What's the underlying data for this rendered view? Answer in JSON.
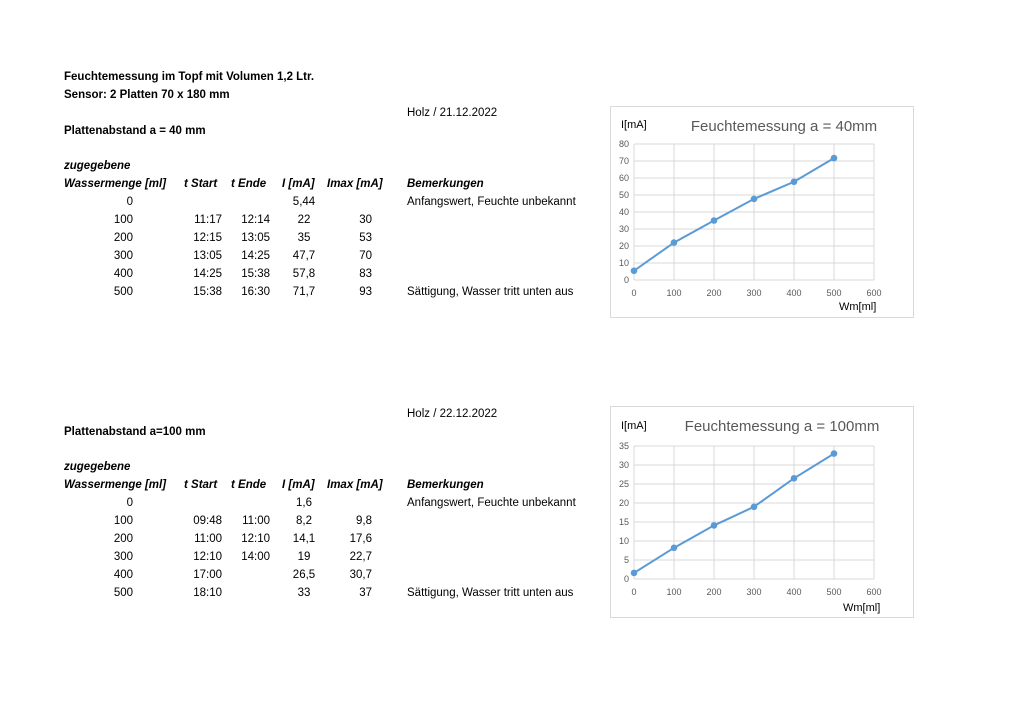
{
  "page": {
    "title_line1": "Feuchtemessung im Topf mit Volumen 1,2 Ltr.",
    "title_line2": "Sensor: 2 Platten 70 x 180 mm"
  },
  "columns": {
    "zugegebene": "zugegebene",
    "wasser": "Wassermenge [ml]",
    "tstart": "t Start",
    "tende": "t Ende",
    "i": "I [mA]",
    "imax": "Imax [mA]",
    "bemerkungen": "Bemerkungen"
  },
  "sections": [
    {
      "heading": "Plattenabstand a = 40 mm",
      "note": "Holz / 21.12.2022",
      "rows": [
        {
          "w": "0",
          "ts": "",
          "te": "",
          "i": "5,44",
          "imax": "",
          "bem": "Anfangswert, Feuchte unbekannt"
        },
        {
          "w": "100",
          "ts": "11:17",
          "te": "12:14",
          "i": "22",
          "imax": "30",
          "bem": ""
        },
        {
          "w": "200",
          "ts": "12:15",
          "te": "13:05",
          "i": "35",
          "imax": "53",
          "bem": ""
        },
        {
          "w": "300",
          "ts": "13:05",
          "te": "14:25",
          "i": "47,7",
          "imax": "70",
          "bem": ""
        },
        {
          "w": "400",
          "ts": "14:25",
          "te": "15:38",
          "i": "57,8",
          "imax": "83",
          "bem": ""
        },
        {
          "w": "500",
          "ts": "15:38",
          "te": "16:30",
          "i": "71,7",
          "imax": "93",
          "bem": "Sättigung, Wasser tritt unten aus"
        }
      ]
    },
    {
      "heading": "Plattenabstand a=100 mm",
      "note": "Holz / 22.12.2022",
      "rows": [
        {
          "w": "0",
          "ts": "",
          "te": "",
          "i": "1,6",
          "imax": "",
          "bem": "Anfangswert, Feuchte unbekannt"
        },
        {
          "w": "100",
          "ts": "09:48",
          "te": "11:00",
          "i": "8,2",
          "imax": "9,8",
          "bem": ""
        },
        {
          "w": "200",
          "ts": "11:00",
          "te": "12:10",
          "i": "14,1",
          "imax": "17,6",
          "bem": ""
        },
        {
          "w": "300",
          "ts": "12:10",
          "te": "14:00",
          "i": "19",
          "imax": "22,7",
          "bem": ""
        },
        {
          "w": "400",
          "ts": "17:00",
          "te": "",
          "i": "26,5",
          "imax": "30,7",
          "bem": ""
        },
        {
          "w": "500",
          "ts": "18:10",
          "te": "",
          "i": "33",
          "imax": "37",
          "bem": "Sättigung, Wasser tritt unten aus"
        }
      ]
    }
  ],
  "chart_data": [
    {
      "type": "line",
      "title": "Feuchtemessung a = 40mm",
      "ylabel": "I[mA]",
      "xlabel": "Wm[ml]",
      "x": [
        0,
        100,
        200,
        300,
        400,
        500
      ],
      "series": [
        {
          "values": [
            5.44,
            22,
            35,
            47.7,
            57.8,
            71.7
          ]
        }
      ],
      "xlim": [
        0,
        600
      ],
      "ylim": [
        0,
        80
      ],
      "xticks": [
        0,
        100,
        200,
        300,
        400,
        500,
        600
      ],
      "yticks": [
        0,
        10,
        20,
        30,
        40,
        50,
        60,
        70,
        80
      ],
      "grid": true,
      "color": "#5b9bd5"
    },
    {
      "type": "line",
      "title": "Feuchtemessung a = 100mm",
      "ylabel": "I[mA]",
      "xlabel": "Wm[ml]",
      "x": [
        0,
        100,
        200,
        300,
        400,
        500
      ],
      "series": [
        {
          "values": [
            1.6,
            8.2,
            14.1,
            19,
            26.5,
            33
          ]
        }
      ],
      "xlim": [
        0,
        600
      ],
      "ylim": [
        0,
        35
      ],
      "xticks": [
        0,
        100,
        200,
        300,
        400,
        500,
        600
      ],
      "yticks": [
        0,
        5,
        10,
        15,
        20,
        25,
        30,
        35
      ],
      "grid": true,
      "color": "#5b9bd5"
    }
  ]
}
